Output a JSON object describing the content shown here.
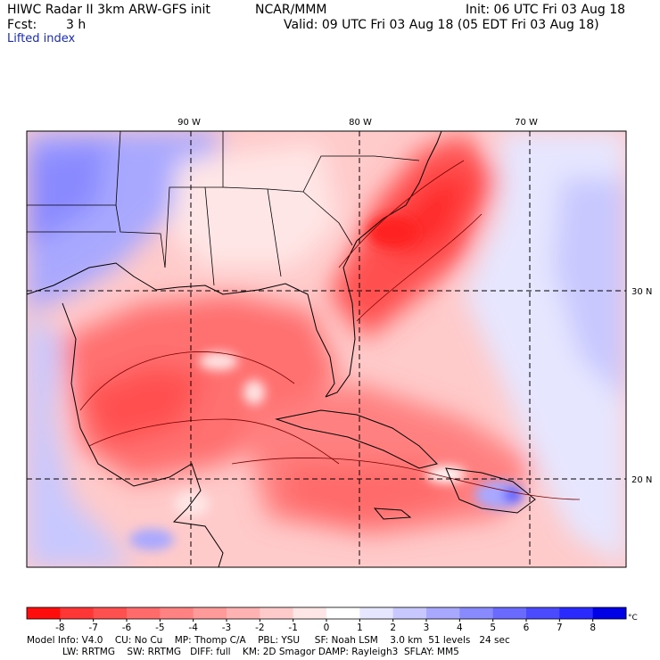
{
  "header": {
    "title": "HIWC Radar II 3km ARW-GFS init",
    "org": "NCAR/MMM",
    "init": "Init: 06 UTC Fri 03 Aug 18",
    "fcst_label": "Fcst:",
    "fcst_value": "3 h",
    "valid": "Valid: 09 UTC Fri 03 Aug 18 (05 EDT Fri 03 Aug 18)",
    "field": "Lifted index"
  },
  "map": {
    "lon_labels": [
      "90 W",
      "80 W",
      "70 W"
    ],
    "lat_labels": [
      "30 N",
      "20 N"
    ]
  },
  "colorbar": {
    "ticks": [
      "-8",
      "-7",
      "-6",
      "-5",
      "-4",
      "-3",
      "-2",
      "-1",
      "0",
      "1",
      "2",
      "3",
      "4",
      "5",
      "6",
      "7",
      "8"
    ],
    "unit": "°C",
    "colors": [
      "#ff0d0d",
      "#ff3636",
      "#ff5050",
      "#ff6a6a",
      "#ff8282",
      "#ff9a9a",
      "#ffb2b2",
      "#ffcaca",
      "#ffe6e6",
      "#ffffff",
      "#e6e6ff",
      "#c8c8ff",
      "#a8a8ff",
      "#8a8aff",
      "#6a6aff",
      "#4a4aff",
      "#2a2aff",
      "#0000e6"
    ]
  },
  "footer": {
    "line1": "Model Info: V4.0    CU: No Cu    MP: Thomp C/A    PBL: YSU     SF: Noah LSM    3.0 km  51 levels   24 sec",
    "line2": "LW: RRTMG    SW: RRTMG   DIFF: full    KM: 2D Smagor DAMP: Rayleigh3  SFLAY: MM5"
  }
}
